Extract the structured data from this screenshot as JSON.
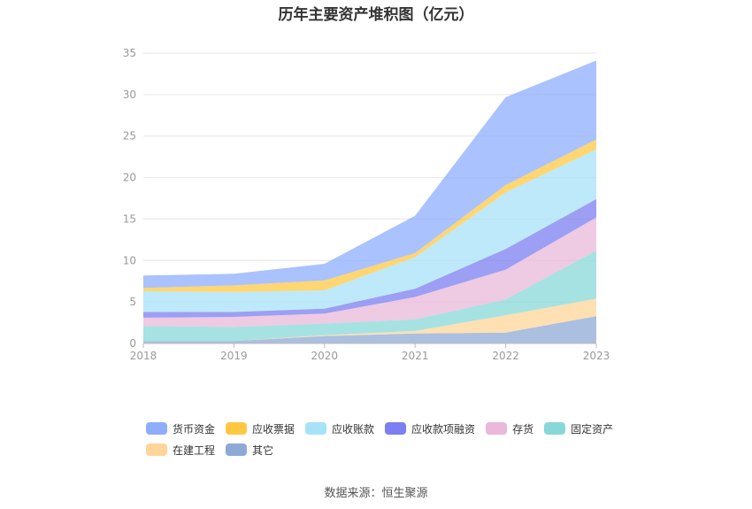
{
  "chart_data": {
    "type": "area",
    "stacked": true,
    "title": "历年主要资产堆积图（亿元）",
    "categories": [
      "2018",
      "2019",
      "2020",
      "2021",
      "2022",
      "2023"
    ],
    "ylim": [
      0,
      35
    ],
    "yticks": [
      0,
      5,
      10,
      15,
      20,
      25,
      30,
      35
    ],
    "grid": true,
    "legend_position": "bottom",
    "series": [
      {
        "name": "其它",
        "color": "#8fa9d6",
        "values": [
          0.3,
          0.3,
          0.9,
          1.2,
          1.3,
          3.3
        ]
      },
      {
        "name": "在建工程",
        "color": "#ffd599",
        "values": [
          0.0,
          0.0,
          0.1,
          0.3,
          2.1,
          2.1
        ]
      },
      {
        "name": "固定资产",
        "color": "#88d8d8",
        "values": [
          1.8,
          1.7,
          1.4,
          1.4,
          1.9,
          5.8
        ]
      },
      {
        "name": "存货",
        "color": "#e9b8da",
        "values": [
          1.0,
          1.2,
          1.2,
          2.7,
          3.6,
          4.0
        ]
      },
      {
        "name": "应收款项融资",
        "color": "#7b7fef",
        "values": [
          0.7,
          0.6,
          0.6,
          1.0,
          2.5,
          2.2
        ]
      },
      {
        "name": "应收账款",
        "color": "#a8e2f8",
        "values": [
          2.5,
          2.4,
          2.2,
          3.8,
          6.8,
          6.0
        ]
      },
      {
        "name": "应收票据",
        "color": "#ffc842",
        "values": [
          0.4,
          0.8,
          1.2,
          0.5,
          0.9,
          1.2
        ]
      },
      {
        "name": "货币资金",
        "color": "#8eaefc",
        "values": [
          1.5,
          1.4,
          2.0,
          4.5,
          10.6,
          9.5
        ]
      }
    ]
  },
  "legend": {
    "row1": [
      {
        "name": "货币资金",
        "color": "#8eaefc"
      },
      {
        "name": "应收票据",
        "color": "#ffc842"
      },
      {
        "name": "应收账款",
        "color": "#a8e2f8"
      },
      {
        "name": "应收款项融资",
        "color": "#7b7fef"
      },
      {
        "name": "存货",
        "color": "#e9b8da"
      },
      {
        "name": "固定资产",
        "color": "#88d8d8"
      }
    ],
    "row2": [
      {
        "name": "在建工程",
        "color": "#ffd599"
      },
      {
        "name": "其它",
        "color": "#8fa9d6"
      }
    ]
  },
  "source": "数据来源：恒生聚源"
}
